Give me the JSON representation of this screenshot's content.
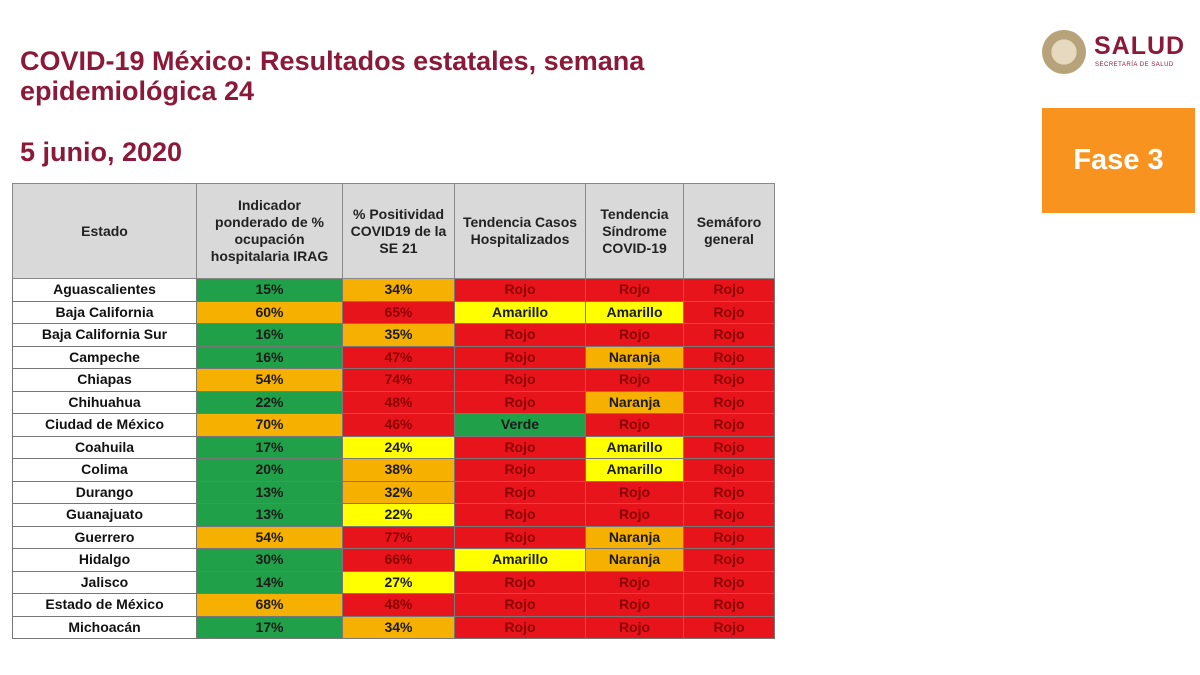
{
  "header": {
    "title": "COVID-19 México: Resultados estatales, semana epidemiológica 24",
    "date": "5 junio, 2020",
    "logo": "SALUD",
    "logo_subtitle": "SECRETARÍA DE SALUD",
    "phase": "Fase 3"
  },
  "table": {
    "columns": [
      "Estado",
      "Indicador ponderado de % ocupación hospitalaria IRAG",
      "% Positividad COVID19 de la SE 21",
      "Tendencia Casos Hospitalizados",
      "Tendencia Síndrome COVID-19",
      "Semáforo general"
    ],
    "rows": [
      [
        "Aguascalientes",
        "15%",
        "34%",
        "Rojo",
        "Rojo",
        "Rojo"
      ],
      [
        "Baja California",
        "60%",
        "65%",
        "Amarillo",
        "Amarillo",
        "Rojo"
      ],
      [
        "Baja California Sur",
        "16%",
        "35%",
        "Rojo",
        "Rojo",
        "Rojo"
      ],
      [
        "Campeche",
        "16%",
        "47%",
        "Rojo",
        "Naranja",
        "Rojo"
      ],
      [
        "Chiapas",
        "54%",
        "74%",
        "Rojo",
        "Rojo",
        "Rojo"
      ],
      [
        "Chihuahua",
        "22%",
        "48%",
        "Rojo",
        "Naranja",
        "Rojo"
      ],
      [
        "Ciudad de México",
        "70%",
        "46%",
        "Verde",
        "Rojo",
        "Rojo"
      ],
      [
        "Coahuila",
        "17%",
        "24%",
        "Rojo",
        "Amarillo",
        "Rojo"
      ],
      [
        "Colima",
        "20%",
        "38%",
        "Rojo",
        "Amarillo",
        "Rojo"
      ],
      [
        "Durango",
        "13%",
        "32%",
        "Rojo",
        "Rojo",
        "Rojo"
      ],
      [
        "Guanajuato",
        "13%",
        "22%",
        "Rojo",
        "Rojo",
        "Rojo"
      ],
      [
        "Guerrero",
        "54%",
        "77%",
        "Rojo",
        "Naranja",
        "Rojo"
      ],
      [
        "Hidalgo",
        "30%",
        "66%",
        "Amarillo",
        "Naranja",
        "Rojo"
      ],
      [
        "Jalisco",
        "14%",
        "27%",
        "Rojo",
        "Rojo",
        "Rojo"
      ],
      [
        "Estado de México",
        "68%",
        "48%",
        "Rojo",
        "Rojo",
        "Rojo"
      ],
      [
        "Michoacán",
        "17%",
        "34%",
        "Rojo",
        "Rojo",
        "Rojo"
      ]
    ],
    "row_colors": [
      [
        "#21a04a",
        "#f6b000",
        "#e8141b",
        "#e8141b",
        "#e8141b"
      ],
      [
        "#f6b000",
        "#e8141b",
        "#ffff00",
        "#ffff00",
        "#e8141b"
      ],
      [
        "#21a04a",
        "#f6b000",
        "#e8141b",
        "#e8141b",
        "#e8141b"
      ],
      [
        "#21a04a",
        "#e8141b",
        "#e8141b",
        "#f6b000",
        "#e8141b"
      ],
      [
        "#f6b000",
        "#e8141b",
        "#e8141b",
        "#e8141b",
        "#e8141b"
      ],
      [
        "#21a04a",
        "#e8141b",
        "#e8141b",
        "#f6b000",
        "#e8141b"
      ],
      [
        "#f6b000",
        "#e8141b",
        "#21a04a",
        "#e8141b",
        "#e8141b"
      ],
      [
        "#21a04a",
        "#ffff00",
        "#e8141b",
        "#ffff00",
        "#e8141b"
      ],
      [
        "#21a04a",
        "#f6b000",
        "#e8141b",
        "#ffff00",
        "#e8141b"
      ],
      [
        "#21a04a",
        "#f6b000",
        "#e8141b",
        "#e8141b",
        "#e8141b"
      ],
      [
        "#21a04a",
        "#ffff00",
        "#e8141b",
        "#e8141b",
        "#e8141b"
      ],
      [
        "#f6b000",
        "#e8141b",
        "#e8141b",
        "#f6b000",
        "#e8141b"
      ],
      [
        "#21a04a",
        "#e8141b",
        "#ffff00",
        "#f6b000",
        "#e8141b"
      ],
      [
        "#21a04a",
        "#ffff00",
        "#e8141b",
        "#e8141b",
        "#e8141b"
      ],
      [
        "#f6b000",
        "#e8141b",
        "#e8141b",
        "#e8141b",
        "#e8141b"
      ],
      [
        "#21a04a",
        "#f6b000",
        "#e8141b",
        "#e8141b",
        "#e8141b"
      ]
    ]
  }
}
